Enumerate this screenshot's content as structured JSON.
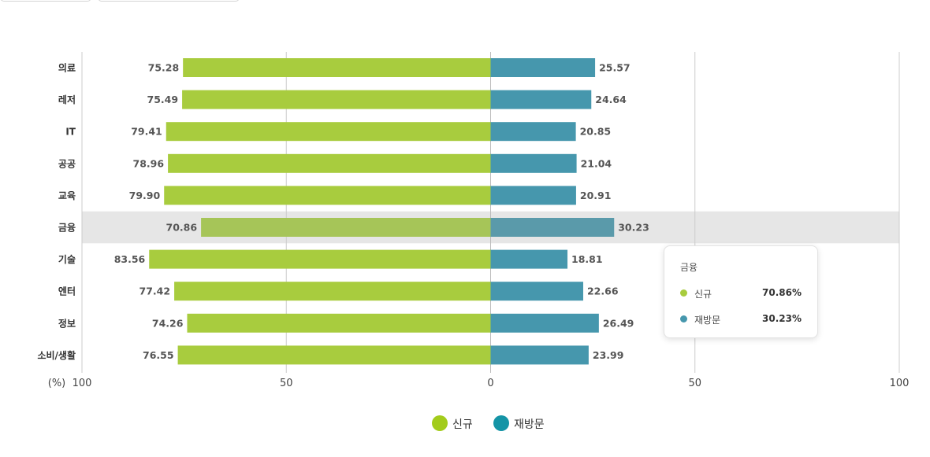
{
  "chart_data": {
    "type": "bar",
    "orientation": "horizontal-diverging",
    "categories": [
      "의료",
      "레저",
      "IT",
      "공공",
      "교육",
      "금융",
      "기술",
      "엔터",
      "정보",
      "소비/생활"
    ],
    "series": [
      {
        "name": "신규",
        "color": "#a8cc3e",
        "values": [
          75.28,
          75.49,
          79.41,
          78.96,
          79.9,
          70.86,
          83.56,
          77.42,
          74.26,
          76.55
        ]
      },
      {
        "name": "재방문",
        "color": "#4697ad",
        "values": [
          25.57,
          24.64,
          20.85,
          21.04,
          20.91,
          30.23,
          18.81,
          22.66,
          26.49,
          23.99
        ]
      }
    ],
    "x_ticks": [
      "100",
      "50",
      "0",
      "50",
      "100"
    ],
    "x_unit_label": "(%)",
    "xlim": [
      -100,
      100
    ],
    "grid": true,
    "legend_position": "bottom-center",
    "highlighted_category": "금융",
    "highlight_color": "#e6e6e6"
  },
  "tooltip": {
    "title": "금융",
    "rows": [
      {
        "name": "신규",
        "value": "70.86%",
        "color": "#a8cc3e"
      },
      {
        "name": "재방문",
        "value": "30.23%",
        "color": "#4697ad"
      }
    ]
  },
  "legend": {
    "items": [
      {
        "label": "신규",
        "color": "#a3cc1c"
      },
      {
        "label": "재방문",
        "color": "#1494a6"
      }
    ]
  }
}
